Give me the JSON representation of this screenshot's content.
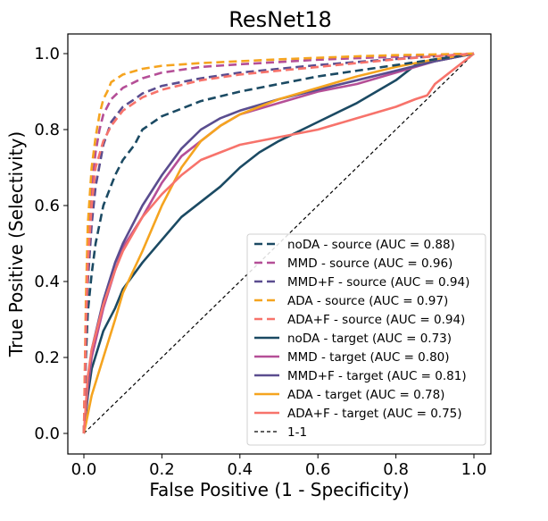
{
  "chart_data": {
    "type": "line",
    "title": "ResNet18",
    "xlabel": "False Positive (1 - Specificity)",
    "ylabel": "True Positive (Selectivity)",
    "xlim": [
      0.0,
      1.0
    ],
    "ylim": [
      0.0,
      1.0
    ],
    "xticks": [
      "0.0",
      "0.2",
      "0.4",
      "0.6",
      "0.8",
      "1.0"
    ],
    "yticks": [
      "0.0",
      "0.2",
      "0.4",
      "0.6",
      "0.8",
      "1.0"
    ],
    "grid": false,
    "legend_position": "lower-right",
    "series": [
      {
        "name": "noDA - source (AUC = 0.88)",
        "color": "#1b4a63",
        "dash": "dashed",
        "x": [
          0,
          0.005,
          0.01,
          0.02,
          0.03,
          0.05,
          0.08,
          0.1,
          0.13,
          0.15,
          0.2,
          0.25,
          0.3,
          0.4,
          0.5,
          0.6,
          0.7,
          0.8,
          0.9,
          1.0
        ],
        "y": [
          0,
          0.2,
          0.32,
          0.42,
          0.5,
          0.6,
          0.68,
          0.72,
          0.76,
          0.8,
          0.835,
          0.855,
          0.875,
          0.9,
          0.92,
          0.94,
          0.955,
          0.97,
          0.985,
          1.0
        ]
      },
      {
        "name": "MMD - source (AUC = 0.96)",
        "color": "#b54f97",
        "dash": "dashed",
        "x": [
          0,
          0.005,
          0.01,
          0.02,
          0.03,
          0.04,
          0.05,
          0.07,
          0.1,
          0.15,
          0.2,
          0.3,
          0.4,
          0.5,
          0.6,
          0.7,
          0.8,
          0.9,
          1.0
        ],
        "y": [
          0,
          0.3,
          0.5,
          0.65,
          0.74,
          0.8,
          0.84,
          0.88,
          0.91,
          0.935,
          0.95,
          0.965,
          0.972,
          0.978,
          0.984,
          0.988,
          0.992,
          0.996,
          1.0
        ]
      },
      {
        "name": "MMD+F - source (AUC = 0.94)",
        "color": "#5a4d8f",
        "dash": "dashed",
        "x": [
          0,
          0.005,
          0.01,
          0.02,
          0.03,
          0.05,
          0.07,
          0.1,
          0.13,
          0.15,
          0.2,
          0.3,
          0.4,
          0.5,
          0.6,
          0.7,
          0.8,
          0.9,
          1.0
        ],
        "y": [
          0,
          0.25,
          0.4,
          0.55,
          0.65,
          0.76,
          0.82,
          0.86,
          0.88,
          0.895,
          0.915,
          0.935,
          0.95,
          0.96,
          0.97,
          0.978,
          0.986,
          0.993,
          1.0
        ]
      },
      {
        "name": "ADA - source (AUC = 0.97)",
        "color": "#f5a41f",
        "dash": "dashed",
        "x": [
          0,
          0.005,
          0.01,
          0.02,
          0.03,
          0.04,
          0.05,
          0.06,
          0.07,
          0.1,
          0.15,
          0.2,
          0.3,
          0.4,
          0.5,
          0.6,
          0.7,
          0.8,
          0.9,
          1.0
        ],
        "y": [
          0,
          0.35,
          0.55,
          0.7,
          0.78,
          0.84,
          0.88,
          0.9,
          0.925,
          0.945,
          0.96,
          0.968,
          0.975,
          0.98,
          0.985,
          0.989,
          0.993,
          0.996,
          0.998,
          1.0
        ]
      },
      {
        "name": "ADA+F - source (AUC = 0.94)",
        "color": "#f7736b",
        "dash": "dashed",
        "x": [
          0,
          0.005,
          0.01,
          0.02,
          0.03,
          0.05,
          0.07,
          0.1,
          0.15,
          0.2,
          0.3,
          0.4,
          0.5,
          0.6,
          0.7,
          0.8,
          0.9,
          1.0
        ],
        "y": [
          0,
          0.28,
          0.45,
          0.6,
          0.7,
          0.77,
          0.81,
          0.85,
          0.885,
          0.905,
          0.93,
          0.945,
          0.955,
          0.965,
          0.975,
          0.985,
          0.993,
          1.0
        ]
      },
      {
        "name": "noDA - target (AUC = 0.73)",
        "color": "#1b4a63",
        "dash": "solid",
        "x": [
          0,
          0.01,
          0.02,
          0.05,
          0.08,
          0.1,
          0.15,
          0.2,
          0.25,
          0.3,
          0.35,
          0.4,
          0.45,
          0.5,
          0.6,
          0.7,
          0.8,
          0.85,
          0.9,
          1.0
        ],
        "y": [
          0,
          0.1,
          0.17,
          0.27,
          0.33,
          0.38,
          0.45,
          0.51,
          0.57,
          0.61,
          0.65,
          0.7,
          0.74,
          0.77,
          0.82,
          0.87,
          0.93,
          0.97,
          0.98,
          1.0
        ]
      },
      {
        "name": "MMD - target (AUC = 0.80)",
        "color": "#b54f97",
        "dash": "solid",
        "x": [
          0,
          0.01,
          0.02,
          0.05,
          0.08,
          0.1,
          0.15,
          0.2,
          0.25,
          0.3,
          0.35,
          0.4,
          0.5,
          0.6,
          0.7,
          0.8,
          0.9,
          1.0
        ],
        "y": [
          0,
          0.12,
          0.2,
          0.33,
          0.43,
          0.49,
          0.57,
          0.66,
          0.73,
          0.77,
          0.81,
          0.84,
          0.87,
          0.9,
          0.92,
          0.95,
          0.98,
          1.0
        ]
      },
      {
        "name": "MMD+F - target (AUC = 0.81)",
        "color": "#5a4d8f",
        "dash": "solid",
        "x": [
          0,
          0.01,
          0.02,
          0.05,
          0.08,
          0.1,
          0.15,
          0.2,
          0.25,
          0.3,
          0.35,
          0.4,
          0.5,
          0.6,
          0.7,
          0.8,
          0.9,
          1.0
        ],
        "y": [
          0,
          0.13,
          0.22,
          0.35,
          0.45,
          0.5,
          0.6,
          0.68,
          0.75,
          0.8,
          0.83,
          0.85,
          0.88,
          0.905,
          0.93,
          0.955,
          0.98,
          1.0
        ]
      },
      {
        "name": "ADA - target (AUC = 0.78)",
        "color": "#f5a41f",
        "dash": "solid",
        "x": [
          0,
          0.01,
          0.02,
          0.05,
          0.08,
          0.1,
          0.15,
          0.2,
          0.25,
          0.3,
          0.35,
          0.4,
          0.5,
          0.6,
          0.7,
          0.8,
          0.9,
          1.0
        ],
        "y": [
          0,
          0.05,
          0.1,
          0.2,
          0.3,
          0.37,
          0.48,
          0.6,
          0.7,
          0.77,
          0.81,
          0.84,
          0.88,
          0.91,
          0.94,
          0.965,
          0.985,
          1.0
        ]
      },
      {
        "name": "ADA+F - target (AUC = 0.75)",
        "color": "#f7736b",
        "dash": "solid",
        "x": [
          0,
          0.01,
          0.02,
          0.05,
          0.08,
          0.1,
          0.15,
          0.2,
          0.25,
          0.3,
          0.35,
          0.4,
          0.5,
          0.6,
          0.7,
          0.8,
          0.85,
          0.88,
          0.9,
          0.95,
          1.0
        ],
        "y": [
          0,
          0.15,
          0.22,
          0.34,
          0.43,
          0.48,
          0.57,
          0.63,
          0.68,
          0.72,
          0.74,
          0.76,
          0.78,
          0.8,
          0.83,
          0.86,
          0.88,
          0.89,
          0.92,
          0.96,
          1.0
        ]
      },
      {
        "name": "1-1",
        "color": "#000000",
        "dash": "dotted",
        "x": [
          0,
          1
        ],
        "y": [
          0,
          1
        ]
      }
    ]
  }
}
